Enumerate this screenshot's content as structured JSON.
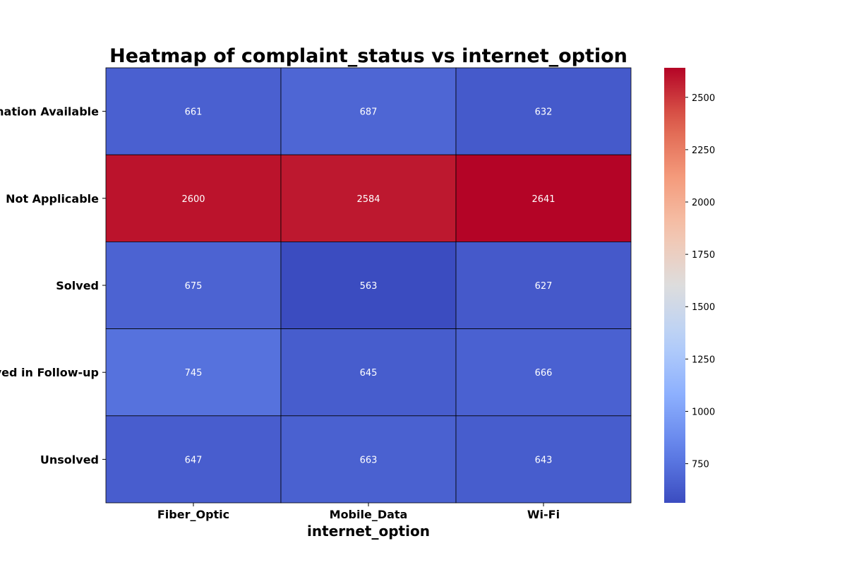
{
  "chart_data": {
    "type": "heatmap",
    "title": "Heatmap of complaint_status vs internet_option",
    "xlabel": "internet_option",
    "ylabel": "",
    "x_categories": [
      "Fiber_Optic",
      "Mobile_Data",
      "Wi-Fi"
    ],
    "y_categories": [
      "No Information Available",
      "Not Applicable",
      "Solved",
      "Solved in Follow-up",
      "Unsolved"
    ],
    "values": [
      [
        661,
        687,
        632
      ],
      [
        2600,
        2584,
        2641
      ],
      [
        675,
        563,
        627
      ],
      [
        745,
        645,
        666
      ],
      [
        647,
        663,
        643
      ]
    ],
    "colormap": "coolwarm",
    "colorbar": {
      "min": 563,
      "max": 2641,
      "ticks": [
        750,
        1000,
        1250,
        1500,
        1750,
        2000,
        2250,
        2500
      ],
      "tick_labels": [
        "750",
        "1000",
        "1250",
        "1500",
        "1750",
        "2000",
        "2250",
        "2500"
      ]
    },
    "annotations_color": "#ffffff",
    "cell_border_color": "#000000"
  }
}
